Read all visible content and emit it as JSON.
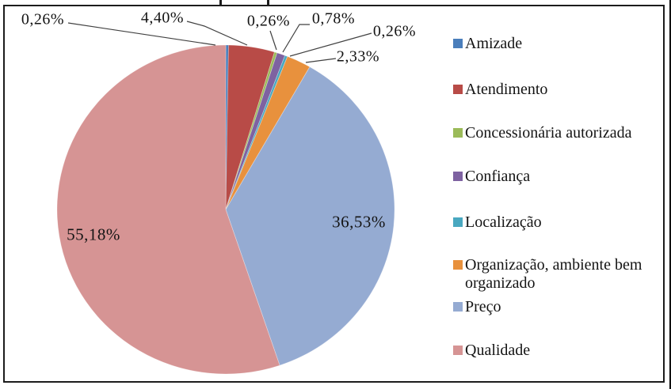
{
  "chart_data": {
    "type": "pie",
    "title": "",
    "unit": "%",
    "decimal_separator": ",",
    "legend_position": "right",
    "start_angle_deg": 0,
    "direction": "clockwise",
    "categories": [
      "Amizade",
      "Atendimento",
      "Concessionária autorizada",
      "Confiança",
      "Localização",
      "Organização, ambiente bem organizado",
      "Preço",
      "Qualidade"
    ],
    "values": [
      0.26,
      4.4,
      0.26,
      0.78,
      0.26,
      2.33,
      36.53,
      55.18
    ],
    "labels": [
      "0,26%",
      "4,40%",
      "0,26%",
      "0,78%",
      "0,26%",
      "2,33%",
      "36,53%",
      "55,18%"
    ],
    "colors": [
      "#4A7EBB",
      "#B84B47",
      "#9BBB59",
      "#7E62A1",
      "#49A8C0",
      "#E8913D",
      "#95ABD2",
      "#D69494"
    ],
    "frame_color": "#1c1c1c",
    "leader_line_color": "#404040"
  }
}
